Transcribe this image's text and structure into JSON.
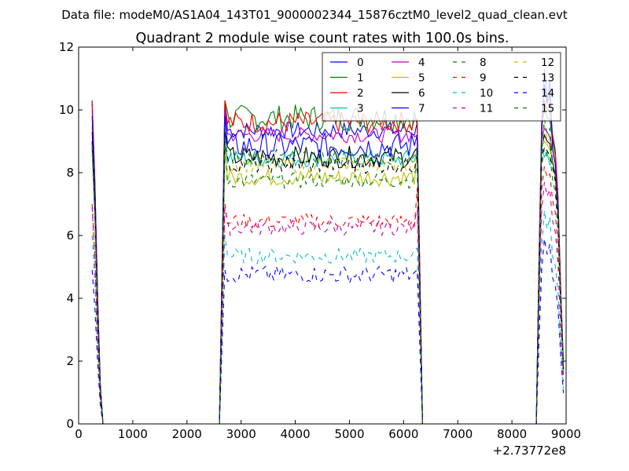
{
  "figure": {
    "suptitle": "Data file: modeM0/AS1A04_143T01_9000002344_15876cztM0_level2_quad_clean.evt",
    "title": "Quadrant 2 module wise count rates with 100.0s bins."
  },
  "chart_data": {
    "type": "line",
    "title": "Quadrant 2 module wise count rates with 100.0s bins.",
    "xlabel": "",
    "ylabel": "",
    "x_offset_label": "+2.73772e8",
    "xlim": [
      0,
      9000
    ],
    "ylim": [
      0,
      12
    ],
    "xticks": [
      0,
      1000,
      2000,
      3000,
      4000,
      5000,
      6000,
      7000,
      8000,
      9000
    ],
    "yticks": [
      0,
      2,
      4,
      6,
      8,
      10,
      12
    ],
    "grid": false,
    "legend": {
      "placement": "top-right",
      "columns": 4
    },
    "series": [
      {
        "name": "0",
        "color": "#0000ff",
        "style": "solid",
        "levels": [
          10.2,
          9.4,
          10.8,
          9.3,
          9.6
        ]
      },
      {
        "name": "1",
        "color": "#008000",
        "style": "solid",
        "levels": [
          10.3,
          9.9,
          10.0,
          9.6,
          9.5
        ]
      },
      {
        "name": "2",
        "color": "#ff0000",
        "style": "solid",
        "levels": [
          10.3,
          9.7,
          10.3,
          9.5,
          9.7
        ]
      },
      {
        "name": "3",
        "color": "#00bfbf",
        "style": "solid",
        "levels": [
          9.5,
          8.5,
          8.5,
          8.4,
          8.8
        ]
      },
      {
        "name": "4",
        "color": "#bf00bf",
        "style": "solid",
        "levels": [
          10.0,
          9.2,
          9.4,
          9.2,
          9.2
        ]
      },
      {
        "name": "5",
        "color": "#bfbf00",
        "style": "solid",
        "levels": [
          9.0,
          7.9,
          9.0,
          7.8,
          8.8
        ]
      },
      {
        "name": "6",
        "color": "#000000",
        "style": "solid",
        "levels": [
          9.3,
          8.6,
          9.2,
          8.4,
          8.8
        ]
      },
      {
        "name": "7",
        "color": "#0000ff",
        "style": "solid",
        "levels": [
          9.8,
          9.0,
          11.3,
          8.7,
          9.2
        ]
      },
      {
        "name": "8",
        "color": "#008000",
        "style": "dashed",
        "levels": [
          8.8,
          7.6,
          8.8,
          7.9,
          8.2
        ]
      },
      {
        "name": "9",
        "color": "#ff0000",
        "style": "dashed",
        "levels": [
          7.0,
          6.4,
          8.2,
          6.5,
          7.5
        ]
      },
      {
        "name": "10",
        "color": "#00bfbf",
        "style": "dashed",
        "levels": [
          6.0,
          5.3,
          6.8,
          5.4,
          5.6
        ]
      },
      {
        "name": "11",
        "color": "#bf00bf",
        "style": "dashed",
        "levels": [
          6.9,
          6.2,
          7.7,
          6.3,
          6.8
        ]
      },
      {
        "name": "12",
        "color": "#bfbf00",
        "style": "dashed",
        "levels": [
          8.6,
          8.2,
          9.5,
          8.3,
          8.6
        ]
      },
      {
        "name": "13",
        "color": "#000000",
        "style": "dashed",
        "levels": [
          9.0,
          8.3,
          8.8,
          8.2,
          8.6
        ]
      },
      {
        "name": "14",
        "color": "#0000ff",
        "style": "dashed",
        "levels": [
          4.9,
          4.8,
          5.9,
          4.7,
          4.9
        ]
      },
      {
        "name": "15",
        "color": "#008000",
        "style": "dashed",
        "levels": [
          8.9,
          8.4,
          9.7,
          8.6,
          8.8
        ]
      }
    ],
    "segments": [
      {
        "x_start": 250,
        "x_end": 450,
        "shape": "decay"
      },
      {
        "x_start": 450,
        "x_end": 2600,
        "shape": "zero"
      },
      {
        "x_start": 2600,
        "x_end": 6350,
        "shape": "plateau"
      },
      {
        "x_start": 6350,
        "x_end": 8450,
        "shape": "zero"
      },
      {
        "x_start": 8450,
        "x_end": 8950,
        "shape": "burst"
      }
    ],
    "bin_width": 100
  }
}
